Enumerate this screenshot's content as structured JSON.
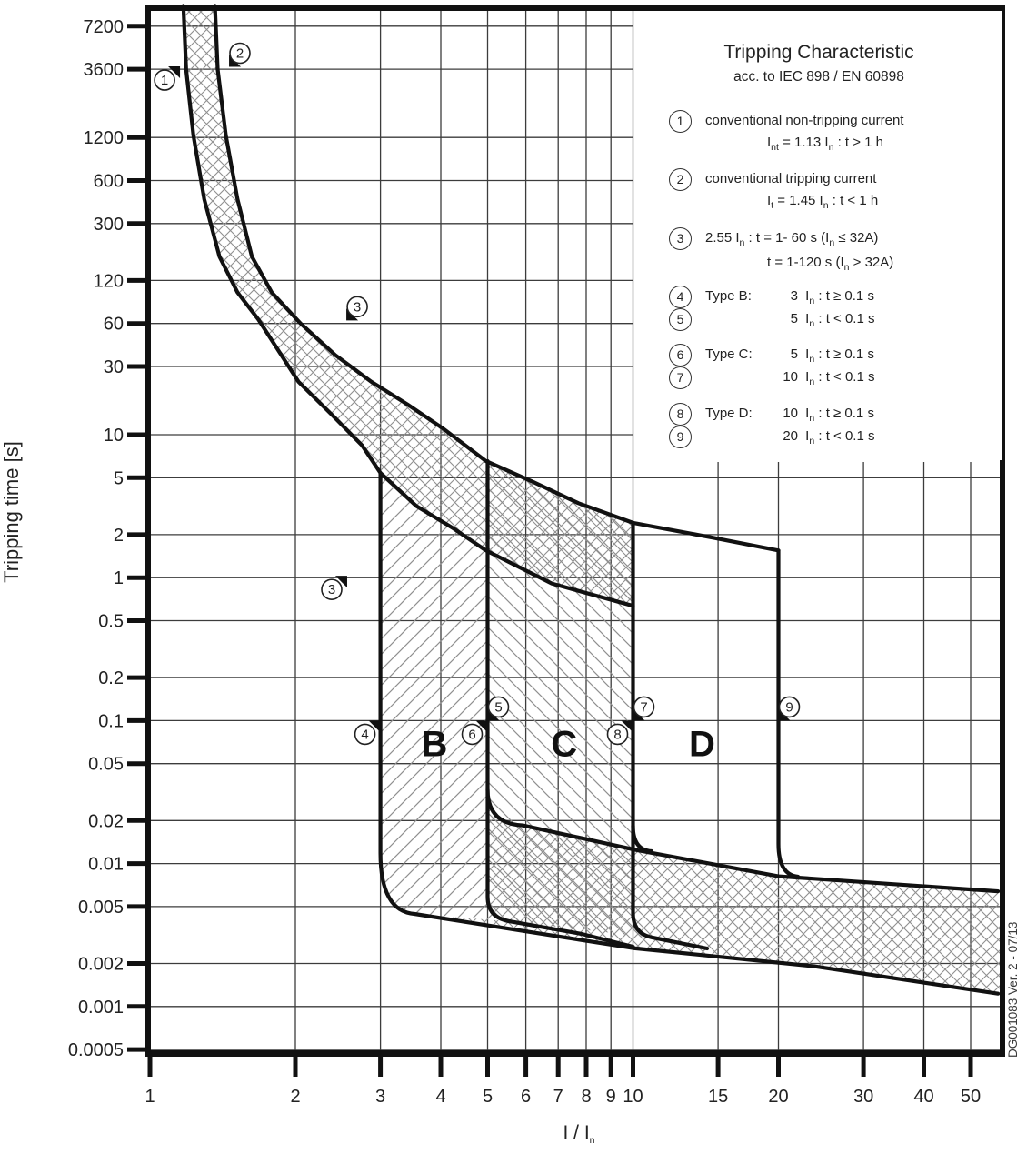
{
  "watermark": "DG001083 Ver. 2 - 07/13",
  "chart_data": {
    "type": "line",
    "title": "Tripping Characteristic",
    "subtitle": "acc. to IEC 898 / EN 60898",
    "ylabel": "Tripping time [s]",
    "xlabel_segments": [
      {
        "t": "I / I"
      },
      {
        "s": "n"
      }
    ],
    "x_scale": "log",
    "y_scale": "log",
    "xlim": [
      1,
      57
    ],
    "ylim": [
      0.0005,
      10000
    ],
    "grid": "on",
    "legend_position": "top-right",
    "x_ticks": [
      1,
      2,
      3,
      4,
      5,
      6,
      7,
      8,
      9,
      10,
      15,
      20,
      30,
      40,
      50
    ],
    "x_tick_labels": [
      "1",
      "2",
      "3",
      "4",
      "5",
      "6",
      "7",
      "8",
      "9",
      "10",
      "15",
      "20",
      "30",
      "40",
      "50"
    ],
    "y_ticks": [
      7200,
      3600,
      1200,
      600,
      300,
      120,
      60,
      30,
      10,
      5,
      2,
      1,
      0.5,
      0.2,
      0.1,
      0.05,
      0.02,
      0.01,
      0.005,
      0.002,
      0.001,
      0.0005
    ],
    "y_tick_labels": [
      "7200",
      "3600",
      "1200",
      "600",
      "300",
      "120",
      "60",
      "30",
      "10",
      "5",
      "2",
      "1",
      "0.5",
      "0.2",
      "0.1",
      "0.05",
      "0.02",
      "0.01",
      "0.005",
      "0.002",
      "0.001",
      "0.0005"
    ],
    "series": [
      {
        "name": "conventional non-tripping current curve (1.13 In)",
        "points": [
          [
            1.173,
            10000
          ],
          [
            1.188,
            3600
          ],
          [
            1.23,
            1240
          ],
          [
            1.295,
            445
          ],
          [
            1.393,
            176
          ],
          [
            1.518,
            99
          ],
          [
            1.677,
            64
          ],
          [
            2.03,
            23.5
          ],
          [
            2.39,
            13.6
          ],
          [
            2.75,
            8.4
          ],
          [
            3.0,
            5.4
          ],
          [
            3.56,
            3.17
          ],
          [
            4.23,
            2.23
          ],
          [
            4.96,
            1.55
          ],
          [
            6.79,
            0.91
          ],
          [
            10.0,
            0.635
          ]
        ]
      },
      {
        "name": "conventional tripping current curve (1.45 In)",
        "points": [
          [
            1.363,
            10000
          ],
          [
            1.381,
            3600
          ],
          [
            1.436,
            1240
          ],
          [
            1.518,
            445
          ],
          [
            1.626,
            176
          ],
          [
            1.787,
            99
          ],
          [
            2.05,
            60
          ],
          [
            2.42,
            36
          ],
          [
            2.87,
            23.5
          ],
          [
            3.41,
            16.3
          ],
          [
            4.05,
            11.0
          ],
          [
            4.96,
            6.55
          ],
          [
            6.22,
            4.66
          ],
          [
            7.71,
            3.32
          ],
          [
            10.0,
            2.42
          ]
        ]
      },
      {
        "name": "type D upper boundary",
        "points": [
          [
            10.0,
            2.42
          ],
          [
            14.7,
            1.9
          ],
          [
            20.0,
            1.55
          ]
        ]
      },
      {
        "name": "instantaneous fast-band upper boundary",
        "points": [
          [
            5.91,
            0.0185
          ],
          [
            10.2,
            0.0124
          ],
          [
            20.0,
            0.00814
          ],
          [
            57.0,
            0.0064
          ]
        ]
      },
      {
        "name": "instantaneous minimum-time lower boundary",
        "points": [
          [
            3.53,
            0.00442
          ],
          [
            10.0,
            0.00256
          ],
          [
            23.7,
            0.00191
          ],
          [
            57.0,
            0.00123
          ]
        ]
      }
    ],
    "instantaneous_thresholds": {
      "B": [
        3,
        5
      ],
      "C": [
        5,
        10
      ],
      "D": [
        10,
        20
      ],
      "t_limit_s": 0.1
    },
    "regions": [
      {
        "label": "B",
        "I": 3.88,
        "t": 0.069
      },
      {
        "label": "C",
        "I": 7.2,
        "t": 0.069
      },
      {
        "label": "D",
        "I": 13.9,
        "t": 0.069
      }
    ],
    "markers": [
      {
        "n": "1",
        "I": 1.154,
        "t": 3767,
        "dir": "ne"
      },
      {
        "n": "2",
        "I": 1.458,
        "t": 3740,
        "dir": "sw"
      },
      {
        "n": "3",
        "I": 2.55,
        "t": 63,
        "dir": "sw"
      },
      {
        "n": "3",
        "I": 2.56,
        "t": 1.03,
        "dir": "ne"
      },
      {
        "n": "4",
        "I": 3,
        "t": 0.1,
        "dir": "ne"
      },
      {
        "n": "5",
        "I": 5,
        "t": 0.1,
        "dir": "sw"
      },
      {
        "n": "6",
        "I": 5,
        "t": 0.1,
        "dir": "ne"
      },
      {
        "n": "7",
        "I": 10,
        "t": 0.1,
        "dir": "sw"
      },
      {
        "n": "8",
        "I": 10,
        "t": 0.1,
        "dir": "ne"
      },
      {
        "n": "9",
        "I": 20,
        "t": 0.1,
        "dir": "sw"
      }
    ]
  },
  "legend": {
    "note_rows": [
      {
        "num": "1",
        "top": 112,
        "line1": [
          {
            "t": "conventional non-tripping current"
          }
        ],
        "line2": [
          {
            "t": "I"
          },
          {
            "s": "nt"
          },
          {
            "t": "  = 1.13 I"
          },
          {
            "s": "n"
          },
          {
            "t": " :  t > 1 h"
          }
        ]
      },
      {
        "num": "2",
        "top": 176,
        "line1": [
          {
            "t": "conventional tripping current"
          }
        ],
        "line2": [
          {
            "t": "I"
          },
          {
            "s": "t"
          },
          {
            "t": "  = 1.45 I"
          },
          {
            "s": "n"
          },
          {
            "t": " :  t < 1 h"
          }
        ]
      },
      {
        "num": "3",
        "top": 241,
        "line1": [
          {
            "t": "2.55 I"
          },
          {
            "s": "n"
          },
          {
            "t": " :   t = 1- 60 s     (I"
          },
          {
            "s": "n"
          },
          {
            "t": " ≤ 32A)"
          }
        ],
        "line2": [
          {
            "t": "t = 1-120 s   (I"
          },
          {
            "s": "n"
          },
          {
            "t": " > 32A)"
          }
        ],
        "indent2": true
      }
    ],
    "type_rows": [
      {
        "num": "4",
        "top": 305,
        "type": "Type B:",
        "f": [
          {
            "t": "3 I"
          },
          {
            "s": "n"
          },
          {
            "t": "   : t ≥ 0.1 s"
          }
        ]
      },
      {
        "num": "5",
        "top": 330,
        "type": "",
        "f": [
          {
            "t": "5 I"
          },
          {
            "s": "n"
          },
          {
            "t": "   : t < 0.1 s"
          }
        ]
      },
      {
        "num": "6",
        "top": 369,
        "type": "Type C:",
        "f": [
          {
            "t": "5 I"
          },
          {
            "s": "n"
          },
          {
            "t": "   : t ≥ 0.1 s"
          }
        ]
      },
      {
        "num": "7",
        "top": 394,
        "type": "",
        "f": [
          {
            "t": "10 I"
          },
          {
            "s": "n"
          },
          {
            "t": "  : t < 0.1 s"
          }
        ]
      },
      {
        "num": "8",
        "top": 434,
        "type": "Type D:",
        "f": [
          {
            "t": "10 I"
          },
          {
            "s": "n"
          },
          {
            "t": "  : t ≥ 0.1 s"
          }
        ]
      },
      {
        "num": "9",
        "top": 459,
        "type": "",
        "f": [
          {
            "t": "20 I"
          },
          {
            "s": "n"
          },
          {
            "t": "  : t < 0.1 s"
          }
        ]
      }
    ]
  },
  "colors": {
    "line": "#111111",
    "grid": "#3c3c3c",
    "hatch": "#8f8f8f",
    "text": "#222222",
    "background": "#ffffff"
  }
}
